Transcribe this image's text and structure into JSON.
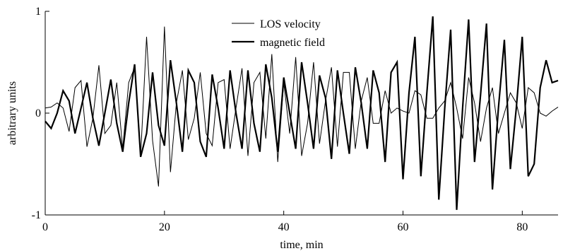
{
  "chart_data": {
    "type": "line",
    "xlabel": "time, min",
    "ylabel": "arbitrary units",
    "xlim": [
      0,
      86
    ],
    "ylim": [
      -1,
      1
    ],
    "x_ticks": [
      0,
      20,
      40,
      60,
      80
    ],
    "x_tick_labels": [
      "0",
      "20",
      "40",
      "60",
      "80"
    ],
    "y_ticks": [
      -1,
      0,
      1
    ],
    "y_tick_labels": [
      "-1",
      "0",
      "1"
    ],
    "grid": false,
    "legend_position": "top-center",
    "series": [
      {
        "name": "LOS velocity",
        "style": "thin",
        "color": "#000000",
        "x": [
          0,
          1,
          2,
          3,
          4,
          5,
          6,
          7,
          8,
          9,
          10,
          11,
          12,
          13,
          14,
          15,
          16,
          17,
          18,
          19,
          20,
          21,
          22,
          23,
          24,
          25,
          26,
          27,
          28,
          29,
          30,
          31,
          32,
          33,
          34,
          35,
          36,
          37,
          38,
          39,
          40,
          41,
          42,
          43,
          44,
          45,
          46,
          47,
          48,
          49,
          50,
          51,
          52,
          53,
          54,
          55,
          56,
          57,
          58,
          59,
          60,
          61,
          62,
          63,
          64,
          65,
          66,
          67,
          68,
          69,
          70,
          71,
          72,
          73,
          74,
          75,
          76,
          77,
          78,
          79,
          80,
          81,
          82,
          83,
          84,
          85,
          86
        ],
        "y": [
          0.05,
          0.06,
          0.1,
          0.05,
          -0.18,
          0.25,
          0.32,
          -0.33,
          -0.05,
          0.47,
          -0.2,
          -0.12,
          0.3,
          -0.35,
          0.3,
          0.45,
          -0.42,
          0.75,
          -0.27,
          -0.72,
          0.85,
          -0.58,
          0.1,
          0.42,
          -0.26,
          -0.05,
          0.4,
          -0.2,
          -0.32,
          0.3,
          0.33,
          -0.35,
          0.05,
          0.44,
          -0.42,
          0.3,
          0.4,
          -0.25,
          0.58,
          -0.48,
          0.3,
          -0.2,
          0.55,
          -0.42,
          -0.1,
          0.5,
          -0.3,
          0.12,
          0.45,
          -0.33,
          0.4,
          0.4,
          -0.35,
          0.12,
          0.35,
          -0.1,
          -0.1,
          0.22,
          0.0,
          0.05,
          0.02,
          0.0,
          0.22,
          0.18,
          -0.05,
          -0.05,
          0.05,
          0.12,
          0.3,
          0.05,
          -0.25,
          0.35,
          0.1,
          -0.28,
          0.05,
          0.25,
          -0.2,
          0.0,
          0.2,
          0.1,
          -0.15,
          0.25,
          0.2,
          0.0,
          -0.03,
          0.02,
          0.06
        ]
      },
      {
        "name": "magnetic field",
        "style": "thick",
        "color": "#000000",
        "x": [
          0,
          1,
          2,
          3,
          4,
          5,
          6,
          7,
          8,
          9,
          10,
          11,
          12,
          13,
          14,
          15,
          16,
          17,
          18,
          19,
          20,
          21,
          22,
          23,
          24,
          25,
          26,
          27,
          28,
          29,
          30,
          31,
          32,
          33,
          34,
          35,
          36,
          37,
          38,
          39,
          40,
          41,
          42,
          43,
          44,
          45,
          46,
          47,
          48,
          49,
          50,
          51,
          52,
          53,
          54,
          55,
          56,
          57,
          58,
          59,
          60,
          61,
          62,
          63,
          64,
          65,
          66,
          67,
          68,
          69,
          70,
          71,
          72,
          73,
          74,
          75,
          76,
          77,
          78,
          79,
          80,
          81,
          82,
          83,
          84,
          85,
          86
        ],
        "y": [
          -0.08,
          -0.15,
          0.0,
          0.22,
          0.12,
          -0.2,
          0.05,
          0.3,
          -0.05,
          -0.32,
          0.0,
          0.33,
          -0.1,
          -0.38,
          0.1,
          0.48,
          -0.43,
          -0.2,
          0.4,
          -0.12,
          -0.32,
          0.52,
          0.1,
          -0.38,
          0.42,
          0.3,
          -0.28,
          -0.43,
          0.38,
          0.05,
          -0.35,
          0.42,
          0.0,
          -0.35,
          0.42,
          -0.1,
          -0.38,
          0.48,
          0.15,
          -0.38,
          0.35,
          0.0,
          -0.35,
          0.5,
          0.1,
          -0.35,
          0.37,
          0.15,
          -0.45,
          0.42,
          0.0,
          -0.4,
          0.45,
          0.1,
          -0.35,
          0.42,
          0.2,
          -0.48,
          0.4,
          0.5,
          -0.65,
          0.2,
          0.75,
          -0.62,
          0.2,
          0.95,
          -0.85,
          0.05,
          0.82,
          -0.95,
          0.05,
          0.92,
          -0.48,
          0.18,
          0.88,
          -0.75,
          0.05,
          0.72,
          -0.55,
          0.05,
          0.75,
          -0.62,
          -0.5,
          0.25,
          0.52,
          0.3,
          0.32
        ]
      }
    ]
  }
}
